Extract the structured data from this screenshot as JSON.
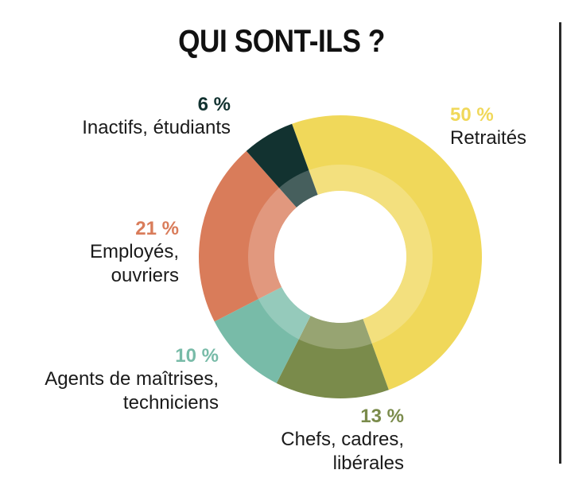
{
  "title": "QUI SONT-ILS ?",
  "chart_data": {
    "type": "donut",
    "title": "QUI SONT-ILS ?",
    "slices": [
      {
        "key": "retraites",
        "label": "Retraités",
        "value": 50,
        "value_label": "50 %",
        "color": "#F0D85A"
      },
      {
        "key": "chefs",
        "label": "Chefs, cadres, libérales",
        "value": 13,
        "value_label": "13 %",
        "color": "#7A8B4B"
      },
      {
        "key": "agents",
        "label": "Agents de maîtrises, techniciens",
        "value": 10,
        "value_label": "10 %",
        "color": "#78BBA8"
      },
      {
        "key": "employes",
        "label": "Employés, ouvriers",
        "value": 21,
        "value_label": "21 %",
        "color": "#D97C5A"
      },
      {
        "key": "inactifs",
        "label": "Inactifs, étudiants",
        "value": 6,
        "value_label": "6 %",
        "color": "#123230"
      }
    ]
  }
}
